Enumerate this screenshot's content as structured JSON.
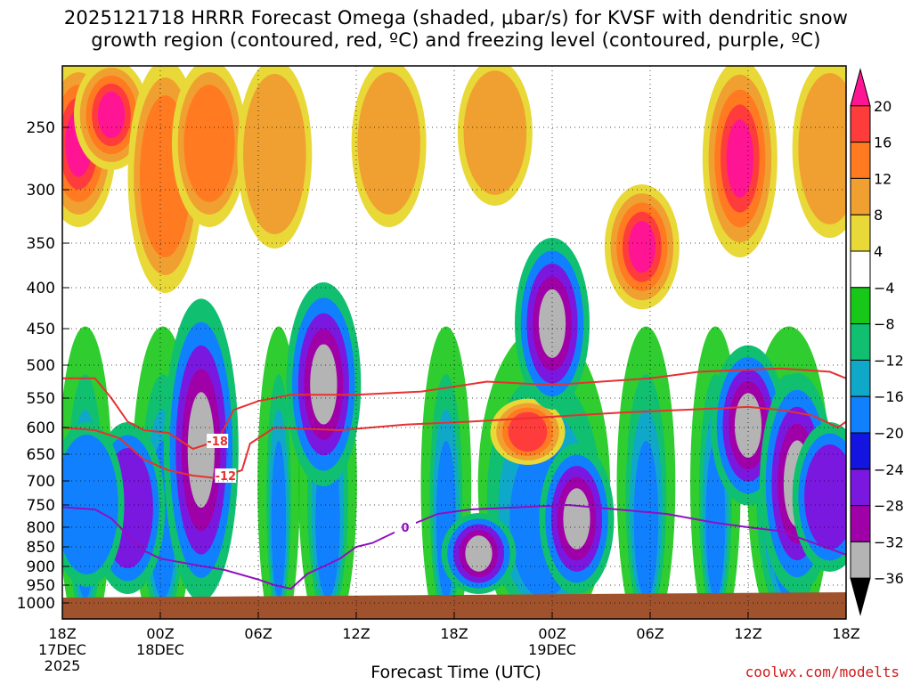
{
  "title_line1": "2025121718 HRRR Forecast Omega (shaded, μbar/s) for KVSF with dendritic snow",
  "title_line2": "growth region (contoured, red, ºC) and freezing level (contoured, purple, ºC)",
  "credit": "coolwx.com/modelts",
  "chart_data": {
    "type": "heatmap",
    "xlabel": "Forecast Time (UTC)",
    "ylabel": "",
    "x_ticks": [
      {
        "hour": 0,
        "label": [
          "18Z",
          "17DEC",
          "2025"
        ]
      },
      {
        "hour": 6,
        "label": [
          "00Z",
          "18DEC"
        ]
      },
      {
        "hour": 12,
        "label": [
          "06Z"
        ]
      },
      {
        "hour": 18,
        "label": [
          "12Z"
        ]
      },
      {
        "hour": 24,
        "label": [
          "18Z"
        ]
      },
      {
        "hour": 30,
        "label": [
          "00Z",
          "19DEC"
        ]
      },
      {
        "hour": 36,
        "label": [
          "06Z"
        ]
      },
      {
        "hour": 42,
        "label": [
          "12Z"
        ]
      },
      {
        "hour": 48,
        "label": [
          "18Z"
        ]
      }
    ],
    "y_ticks": [
      250,
      300,
      350,
      400,
      450,
      500,
      550,
      600,
      650,
      700,
      750,
      800,
      850,
      900,
      950,
      1000
    ],
    "ylim_hpa": [
      200,
      1010
    ],
    "xlim_hours": [
      0,
      48
    ],
    "grid": true,
    "colorbar": {
      "labels": [
        "20",
        "16",
        "12",
        "8",
        "4",
        "−4",
        "−8",
        "−12",
        "−16",
        "−20",
        "−24",
        "−28",
        "−32",
        "−36"
      ],
      "colors": [
        "#ff1493",
        "#ff3c3c",
        "#ff7a20",
        "#f0a030",
        "#e8d838",
        "#ffffff",
        "#18c818",
        "#10c070",
        "#10a8c8",
        "#1080ff",
        "#1414e0",
        "#7a18e0",
        "#a000a8",
        "#b4b4b4",
        "#000000"
      ]
    },
    "omega_cells": [
      {
        "time": 1.0,
        "p_top": 200,
        "p_bottom": 330,
        "value": 20
      },
      {
        "time": 3.0,
        "p_top": 200,
        "p_bottom": 280,
        "value": 20
      },
      {
        "time": 6.3,
        "p_top": 200,
        "p_bottom": 400,
        "value": 12
      },
      {
        "time": 9.0,
        "p_top": 200,
        "p_bottom": 330,
        "value": 12
      },
      {
        "time": 13.0,
        "p_top": 200,
        "p_bottom": 350,
        "value": 8
      },
      {
        "time": 20.0,
        "p_top": 200,
        "p_bottom": 330,
        "value": 8
      },
      {
        "time": 26.5,
        "p_top": 200,
        "p_bottom": 310,
        "value": 8
      },
      {
        "time": 35.5,
        "p_top": 300,
        "p_bottom": 420,
        "value": 20
      },
      {
        "time": 41.5,
        "p_top": 200,
        "p_bottom": 360,
        "value": 20
      },
      {
        "time": 47.0,
        "p_top": 200,
        "p_bottom": 340,
        "value": 8
      },
      {
        "time": 28.5,
        "p_top": 560,
        "p_bottom": 660,
        "value": 16
      },
      {
        "time": 4.0,
        "p_top": 600,
        "p_bottom": 960,
        "value": -30
      },
      {
        "time": 8.5,
        "p_top": 420,
        "p_bottom": 980,
        "value": -36
      },
      {
        "time": 16.0,
        "p_top": 400,
        "p_bottom": 700,
        "value": -36
      },
      {
        "time": 25.5,
        "p_top": 780,
        "p_bottom": 960,
        "value": -36
      },
      {
        "time": 30.0,
        "p_top": 350,
        "p_bottom": 560,
        "value": -36
      },
      {
        "time": 31.5,
        "p_top": 640,
        "p_bottom": 960,
        "value": -36
      },
      {
        "time": 42.0,
        "p_top": 480,
        "p_bottom": 740,
        "value": -36
      },
      {
        "time": 45.0,
        "p_top": 520,
        "p_bottom": 960,
        "value": -36
      },
      {
        "time": 1.5,
        "p_top": 600,
        "p_bottom": 940,
        "value": -24
      },
      {
        "time": 47.0,
        "p_top": 600,
        "p_bottom": 900,
        "value": -28
      }
    ],
    "contours": [
      {
        "label": "-18",
        "color": "#e83030",
        "points": [
          [
            0,
            520
          ],
          [
            2,
            520
          ],
          [
            3,
            550
          ],
          [
            4,
            590
          ],
          [
            5,
            605
          ],
          [
            6.5,
            610
          ],
          [
            8,
            640
          ],
          [
            9.5,
            625
          ],
          [
            10.5,
            570
          ],
          [
            12,
            555
          ],
          [
            14,
            545
          ],
          [
            18,
            545
          ],
          [
            22,
            540
          ],
          [
            26,
            525
          ],
          [
            30,
            530
          ],
          [
            33,
            525
          ],
          [
            36,
            520
          ],
          [
            39,
            510
          ],
          [
            44,
            505
          ],
          [
            47,
            510
          ],
          [
            48,
            520
          ]
        ],
        "label_time": 9.5
      },
      {
        "label": "-12",
        "color": "#e83030",
        "points": [
          [
            0,
            600
          ],
          [
            2,
            605
          ],
          [
            3.5,
            620
          ],
          [
            5,
            660
          ],
          [
            6.5,
            680
          ],
          [
            8,
            690
          ],
          [
            9.5,
            695
          ],
          [
            11,
            680
          ],
          [
            11.5,
            630
          ],
          [
            13,
            600
          ],
          [
            17,
            605
          ],
          [
            21,
            595
          ],
          [
            25,
            590
          ],
          [
            28,
            585
          ],
          [
            31,
            580
          ],
          [
            34,
            575
          ],
          [
            38,
            570
          ],
          [
            42,
            565
          ],
          [
            44,
            570
          ],
          [
            46,
            580
          ],
          [
            47.5,
            600
          ],
          [
            48,
            590
          ]
        ],
        "label_time": 10.0
      },
      {
        "label": "0",
        "color": "#9010c0",
        "points": [
          [
            0,
            755
          ],
          [
            2,
            760
          ],
          [
            3,
            780
          ],
          [
            4,
            820
          ],
          [
            5,
            860
          ],
          [
            6,
            880
          ],
          [
            8,
            895
          ],
          [
            10,
            910
          ],
          [
            12,
            935
          ],
          [
            13,
            950
          ],
          [
            14,
            960
          ],
          [
            15,
            920
          ],
          [
            16,
            900
          ],
          [
            17,
            880
          ],
          [
            18,
            850
          ],
          [
            19,
            840
          ],
          [
            21,
            800
          ],
          [
            23,
            770
          ],
          [
            25,
            760
          ],
          [
            28,
            755
          ],
          [
            31,
            750
          ],
          [
            34,
            760
          ],
          [
            37,
            770
          ],
          [
            40,
            790
          ],
          [
            42,
            800
          ],
          [
            44,
            810
          ],
          [
            46,
            840
          ],
          [
            48,
            870
          ]
        ],
        "label_time": 21.0
      }
    ]
  }
}
